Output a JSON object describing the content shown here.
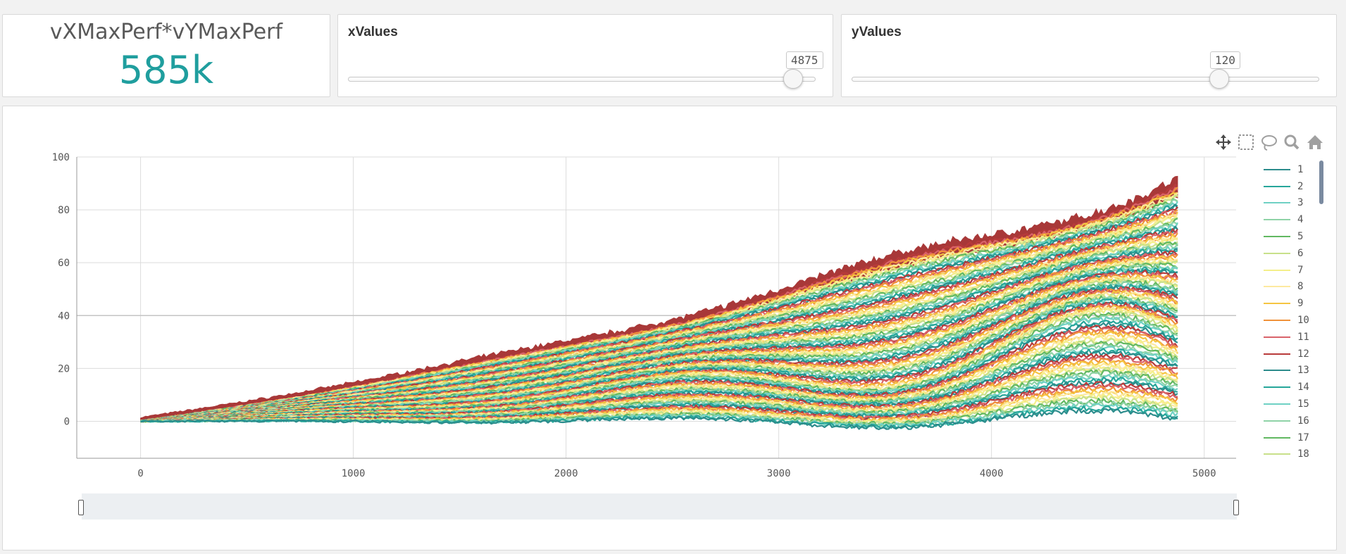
{
  "kpi": {
    "title": "vXMaxPerf*vYMaxPerf",
    "value": "585k"
  },
  "x_slider": {
    "title": "xValues",
    "value": "4875",
    "fraction": 0.952,
    "min": 0,
    "max": 5120
  },
  "y_slider": {
    "title": "yValues",
    "value": "120",
    "fraction": 0.786,
    "min": 0,
    "max": 153
  },
  "toolbar": {
    "icons": [
      "pan-icon",
      "box-select-icon",
      "lasso-select-icon",
      "zoom-icon",
      "home-icon"
    ]
  },
  "colors": {
    "accent": "#1f9e9e",
    "palette": [
      "#2c8c8c",
      "#26a69a",
      "#6fd1c4",
      "#8fd3a7",
      "#61b861",
      "#c8e08a",
      "#f4ef8a",
      "#fde9a0",
      "#f5c542",
      "#f0923a",
      "#d9636a",
      "#b83a3a"
    ],
    "top_band": "#a83838"
  },
  "chart_data": {
    "type": "line",
    "title": "",
    "xlabel": "",
    "ylabel": "",
    "xlim": [
      -300,
      5150
    ],
    "ylim": [
      -14,
      100
    ],
    "xticks": [
      "0",
      "1000",
      "2000",
      "3000",
      "4000",
      "5000"
    ],
    "yticks": [
      "0",
      "20",
      "40",
      "60",
      "80",
      "100"
    ],
    "x_range": [
      0,
      4875
    ],
    "series_count": 120,
    "grid": true,
    "legend_placement": "right",
    "legend": [
      "1",
      "2",
      "3",
      "4",
      "5",
      "6",
      "7",
      "8",
      "9",
      "10",
      "11",
      "12",
      "13",
      "14",
      "15",
      "16",
      "17",
      "18"
    ]
  }
}
